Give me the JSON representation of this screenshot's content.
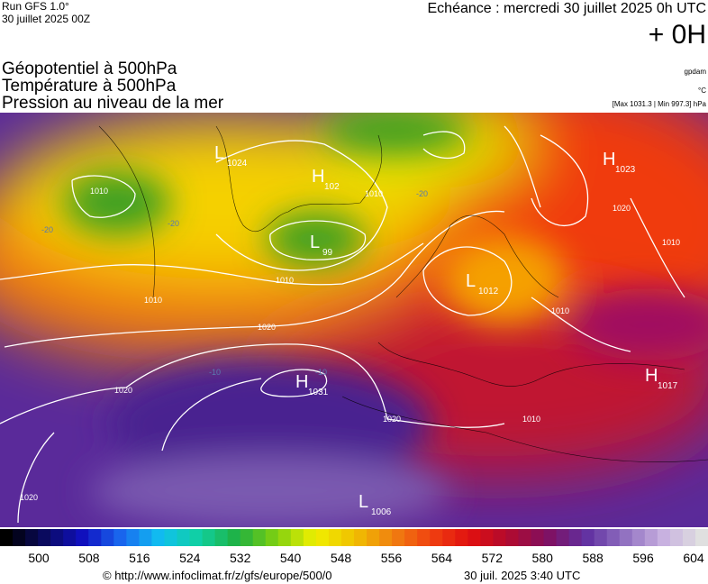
{
  "header": {
    "run": "Run GFS 1.0°",
    "date": "30 juillet 2025 00Z",
    "echeance": "Echéance : mercredi 30 juillet 2025 0h UTC",
    "offset": "+ 0H"
  },
  "titles": [
    "Géopotentiel à 500hPa",
    "Température à 500hPa",
    "Pression au niveau de la mer"
  ],
  "units": [
    "gpdam",
    "°C",
    "[Max 1031.3 | Min 997.3] hPa"
  ],
  "map": {
    "centers": [
      {
        "symbol": "L",
        "value": "1024"
      },
      {
        "symbol": "H",
        "value": "102"
      },
      {
        "symbol": "L",
        "value": "99"
      },
      {
        "symbol": "H",
        "value": "1023"
      },
      {
        "symbol": "L",
        "value": "1012"
      },
      {
        "symbol": "H",
        "value": "1031"
      },
      {
        "symbol": "H",
        "value": "1017"
      },
      {
        "symbol": "L",
        "value": "1006"
      }
    ],
    "isobar_labels": [
      "1010",
      "1010",
      "1010",
      "1010",
      "1020",
      "1020",
      "1020",
      "1020",
      "1010",
      "1010",
      "1020",
      "1010"
    ],
    "temperature_labels": [
      "-20",
      "-20",
      "-10",
      "-10",
      "-20"
    ]
  },
  "colorbar": {
    "ticks": [
      500,
      508,
      516,
      524,
      532,
      540,
      548,
      556,
      564,
      572,
      580,
      588,
      596,
      604
    ]
  },
  "footer": {
    "url": "© http://www.infoclimat.fr/z/gfs/europe/500/0",
    "time": "30 juil. 2025  3:40 UTC"
  }
}
